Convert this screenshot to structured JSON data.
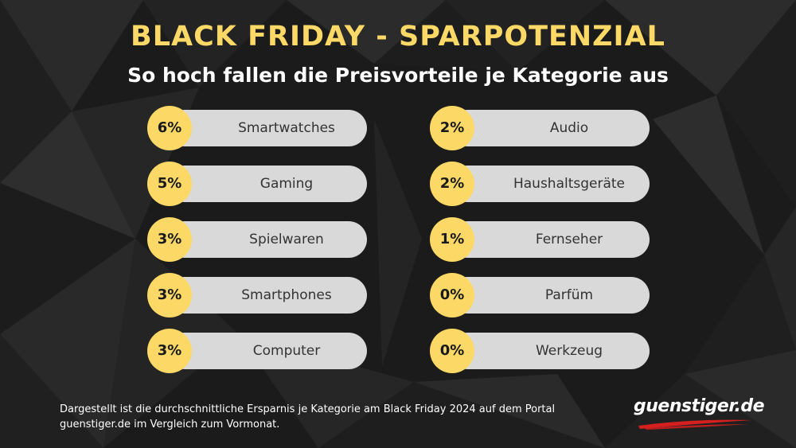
{
  "title": "BLACK FRIDAY - SPARPOTENZIAL",
  "subtitle": "So hoch fallen die Preisvorteile je Kategorie aus",
  "chart_data": {
    "type": "table",
    "columns": [
      [
        {
          "value": "6%",
          "category": "Smartwatches"
        },
        {
          "value": "5%",
          "category": "Gaming"
        },
        {
          "value": "3%",
          "category": "Spielwaren"
        },
        {
          "value": "3%",
          "category": "Smartphones"
        },
        {
          "value": "3%",
          "category": "Computer"
        }
      ],
      [
        {
          "value": "2%",
          "category": "Audio"
        },
        {
          "value": "2%",
          "category": "Haushaltsgeräte"
        },
        {
          "value": "1%",
          "category": "Fernseher"
        },
        {
          "value": "0%",
          "category": "Parfüm"
        },
        {
          "value": "0%",
          "category": "Werkzeug"
        }
      ]
    ]
  },
  "footnote": "Dargestellt ist die durchschnittliche Ersparnis je Kategorie am Black Friday 2024 auf dem Portal guenstiger.de im Vergleich zum Vormonat.",
  "logo": "guenstiger.de",
  "colors": {
    "accent": "#fcd966",
    "pill": "#d9d9d9",
    "background": "#1b1b1b",
    "logo_swoosh": "#d62020"
  }
}
